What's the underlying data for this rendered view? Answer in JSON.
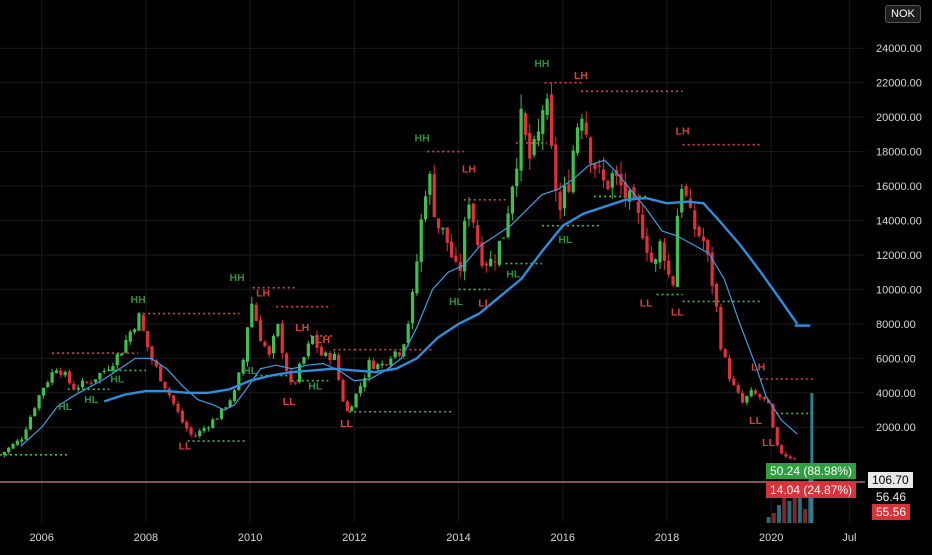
{
  "currency_label": "NOK",
  "colors": {
    "background": "#000000",
    "up_candle": "#3fbf4f",
    "down_candle": "#e0303a",
    "ma_fast": "#3aa0e8",
    "ma_slow": "#2a8fe0",
    "hh_text": "#2f8f3f",
    "lh_text": "#d94040",
    "support_line": "#3fbf4f",
    "resistance_line": "#e04040",
    "axis_text": "#d8d8d8",
    "grid": "#1a1a1a",
    "tag_green": "#2e9e3e",
    "tag_red": "#d8323a",
    "price_line": "#f0b0a0"
  },
  "chart_data": {
    "type": "candlestick",
    "instrument_currency": "NOK",
    "x_ticks": [
      "2006",
      "2008",
      "2010",
      "2012",
      "2014",
      "2016",
      "2018",
      "2020",
      "Jul"
    ],
    "x_tick_years": [
      2006,
      2008,
      2010,
      2012,
      2014,
      2016,
      2018,
      2020,
      2021.5
    ],
    "y_ticks": [
      "2000.00",
      "4000.00",
      "6000.00",
      "8000.00",
      "10000.00",
      "12000.00",
      "14000.00",
      "16000.00",
      "18000.00",
      "20000.00",
      "22000.00",
      "24000.00"
    ],
    "y_tick_values": [
      2000,
      4000,
      6000,
      8000,
      10000,
      12000,
      14000,
      16000,
      18000,
      20000,
      22000,
      24000
    ],
    "ylim": [
      -3500,
      26800
    ],
    "xlim": [
      2005.2,
      2021.8
    ],
    "close_path": [
      [
        2005.2,
        400
      ],
      [
        2005.6,
        1300
      ],
      [
        2006.0,
        4200
      ],
      [
        2006.3,
        5600
      ],
      [
        2006.6,
        4300
      ],
      [
        2006.9,
        4600
      ],
      [
        2007.2,
        5300
      ],
      [
        2007.5,
        6300
      ],
      [
        2007.85,
        8500
      ],
      [
        2008.1,
        6000
      ],
      [
        2008.4,
        4200
      ],
      [
        2008.7,
        2300
      ],
      [
        2008.9,
        1400
      ],
      [
        2009.1,
        1900
      ],
      [
        2009.4,
        2700
      ],
      [
        2009.7,
        4000
      ],
      [
        2009.9,
        6300
      ],
      [
        2010.0,
        9600
      ],
      [
        2010.2,
        7300
      ],
      [
        2010.4,
        5800
      ],
      [
        2010.5,
        8200
      ],
      [
        2010.7,
        5400
      ],
      [
        2010.8,
        4200
      ],
      [
        2011.0,
        5800
      ],
      [
        2011.2,
        7200
      ],
      [
        2011.4,
        6000
      ],
      [
        2011.6,
        6300
      ],
      [
        2011.75,
        4000
      ],
      [
        2011.85,
        2800
      ],
      [
        2012.1,
        4300
      ],
      [
        2012.3,
        5800
      ],
      [
        2012.5,
        5500
      ],
      [
        2012.7,
        6300
      ],
      [
        2012.9,
        6500
      ],
      [
        2013.1,
        9000
      ],
      [
        2013.25,
        13000
      ],
      [
        2013.4,
        17000
      ],
      [
        2013.6,
        13800
      ],
      [
        2013.8,
        12700
      ],
      [
        2014.0,
        10500
      ],
      [
        2014.2,
        15500
      ],
      [
        2014.4,
        12200
      ],
      [
        2014.6,
        11500
      ],
      [
        2014.85,
        13000
      ],
      [
        2015.0,
        15800
      ],
      [
        2015.2,
        19500
      ],
      [
        2015.4,
        17200
      ],
      [
        2015.55,
        19000
      ],
      [
        2015.65,
        21500
      ],
      [
        2015.8,
        17200
      ],
      [
        2015.95,
        14500
      ],
      [
        2016.1,
        16200
      ],
      [
        2016.35,
        21000
      ],
      [
        2016.5,
        18500
      ],
      [
        2016.75,
        16000
      ],
      [
        2016.95,
        16500
      ],
      [
        2017.15,
        15800
      ],
      [
        2017.35,
        14500
      ],
      [
        2017.55,
        13500
      ],
      [
        2017.75,
        11000
      ],
      [
        2017.9,
        13000
      ],
      [
        2018.1,
        9700
      ],
      [
        2018.25,
        16800
      ],
      [
        2018.45,
        14000
      ],
      [
        2018.7,
        12800
      ],
      [
        2018.9,
        10000
      ],
      [
        2019.05,
        6500
      ],
      [
        2019.25,
        4500
      ],
      [
        2019.45,
        3400
      ],
      [
        2019.6,
        4000
      ],
      [
        2019.75,
        3800
      ],
      [
        2019.85,
        3600
      ],
      [
        2019.95,
        3200
      ],
      [
        2020.1,
        800
      ],
      [
        2020.3,
        350
      ],
      [
        2020.5,
        250
      ]
    ],
    "ma_fast": [
      [
        2005.6,
        900
      ],
      [
        2006.0,
        2000
      ],
      [
        2006.3,
        3200
      ],
      [
        2006.6,
        3800
      ],
      [
        2006.9,
        4300
      ],
      [
        2007.2,
        4800
      ],
      [
        2007.5,
        5400
      ],
      [
        2007.8,
        6000
      ],
      [
        2008.1,
        6000
      ],
      [
        2008.4,
        5400
      ],
      [
        2008.7,
        4400
      ],
      [
        2009.0,
        3600
      ],
      [
        2009.3,
        3300
      ],
      [
        2009.5,
        3000
      ],
      [
        2009.7,
        3300
      ],
      [
        2009.9,
        4100
      ],
      [
        2010.2,
        5400
      ],
      [
        2010.5,
        5600
      ],
      [
        2010.8,
        5400
      ],
      [
        2011.1,
        5600
      ],
      [
        2011.4,
        5700
      ],
      [
        2011.7,
        5300
      ],
      [
        2012.0,
        4700
      ],
      [
        2012.3,
        4800
      ],
      [
        2012.6,
        5300
      ],
      [
        2012.9,
        6000
      ],
      [
        2013.2,
        7800
      ],
      [
        2013.5,
        10000
      ],
      [
        2013.8,
        11000
      ],
      [
        2014.1,
        11400
      ],
      [
        2014.4,
        12500
      ],
      [
        2014.7,
        13100
      ],
      [
        2015.0,
        13700
      ],
      [
        2015.3,
        14600
      ],
      [
        2015.6,
        15500
      ],
      [
        2015.9,
        15800
      ],
      [
        2016.2,
        16400
      ],
      [
        2016.5,
        17200
      ],
      [
        2016.8,
        17500
      ],
      [
        2017.0,
        16900
      ],
      [
        2017.3,
        15800
      ],
      [
        2017.6,
        14700
      ],
      [
        2017.9,
        13400
      ],
      [
        2018.2,
        13100
      ],
      [
        2018.5,
        12600
      ],
      [
        2018.8,
        12100
      ],
      [
        2019.1,
        10600
      ],
      [
        2019.4,
        8000
      ],
      [
        2019.7,
        5600
      ],
      [
        2019.9,
        3800
      ],
      [
        2020.2,
        2400
      ],
      [
        2020.5,
        1600
      ]
    ],
    "ma_slow": [
      [
        2007.2,
        3500
      ],
      [
        2007.6,
        3900
      ],
      [
        2008.0,
        4100
      ],
      [
        2008.4,
        4100
      ],
      [
        2008.8,
        4000
      ],
      [
        2009.2,
        4000
      ],
      [
        2009.6,
        4200
      ],
      [
        2010.0,
        4700
      ],
      [
        2010.4,
        5000
      ],
      [
        2010.8,
        5200
      ],
      [
        2011.2,
        5300
      ],
      [
        2011.6,
        5400
      ],
      [
        2012.0,
        5300
      ],
      [
        2012.4,
        5200
      ],
      [
        2012.8,
        5400
      ],
      [
        2013.2,
        6000
      ],
      [
        2013.6,
        7200
      ],
      [
        2014.0,
        8000
      ],
      [
        2014.4,
        8600
      ],
      [
        2014.8,
        9600
      ],
      [
        2015.2,
        10600
      ],
      [
        2015.6,
        12200
      ],
      [
        2016.0,
        13700
      ],
      [
        2016.4,
        14400
      ],
      [
        2016.8,
        14800
      ],
      [
        2017.2,
        15200
      ],
      [
        2017.6,
        15300
      ],
      [
        2018.0,
        15000
      ],
      [
        2018.4,
        15100
      ],
      [
        2018.7,
        15000
      ],
      [
        2019.0,
        14000
      ],
      [
        2019.4,
        12600
      ],
      [
        2019.8,
        11000
      ],
      [
        2020.2,
        9300
      ],
      [
        2020.5,
        8000
      ]
    ],
    "ma_slow_tail": [
      [
        2020.45,
        7900
      ],
      [
        2020.75,
        7900
      ]
    ],
    "structure_labels": [
      {
        "text": "HH",
        "kind": "high",
        "x": 2007.85,
        "y": 9200
      },
      {
        "text": "HL",
        "kind": "high",
        "x": 2006.45,
        "y": 3000
      },
      {
        "text": "HL",
        "kind": "high",
        "x": 2006.95,
        "y": 3400
      },
      {
        "text": "HL",
        "kind": "high",
        "x": 2007.45,
        "y": 4600
      },
      {
        "text": "LL",
        "kind": "low",
        "x": 2008.75,
        "y": 700
      },
      {
        "text": "HH",
        "kind": "high",
        "x": 2009.75,
        "y": 10500
      },
      {
        "text": "HL",
        "kind": "high",
        "x": 2010.0,
        "y": 5100
      },
      {
        "text": "LH",
        "kind": "low",
        "x": 2010.25,
        "y": 9600
      },
      {
        "text": "LL",
        "kind": "low",
        "x": 2010.75,
        "y": 3300
      },
      {
        "text": "LH",
        "kind": "low",
        "x": 2011.0,
        "y": 7600
      },
      {
        "text": "LH",
        "kind": "low",
        "x": 2011.4,
        "y": 6900
      },
      {
        "text": "HL",
        "kind": "high",
        "x": 2011.25,
        "y": 4200
      },
      {
        "text": "LL",
        "kind": "low",
        "x": 2011.85,
        "y": 2000
      },
      {
        "text": "HH",
        "kind": "high",
        "x": 2013.3,
        "y": 18600
      },
      {
        "text": "LH",
        "kind": "low",
        "x": 2014.2,
        "y": 16800
      },
      {
        "text": "HL",
        "kind": "high",
        "x": 2013.95,
        "y": 9100
      },
      {
        "text": "LL",
        "kind": "low",
        "x": 2014.5,
        "y": 9000
      },
      {
        "text": "HL",
        "kind": "high",
        "x": 2015.05,
        "y": 10700
      },
      {
        "text": "HH",
        "kind": "high",
        "x": 2015.6,
        "y": 22900
      },
      {
        "text": "LH",
        "kind": "low",
        "x": 2016.35,
        "y": 22200
      },
      {
        "text": "HL",
        "kind": "high",
        "x": 2016.05,
        "y": 12700
      },
      {
        "text": "LL",
        "kind": "low",
        "x": 2017.6,
        "y": 9000
      },
      {
        "text": "LL",
        "kind": "low",
        "x": 2018.2,
        "y": 8500
      },
      {
        "text": "LH",
        "kind": "low",
        "x": 2018.3,
        "y": 19000
      },
      {
        "text": "LH",
        "kind": "low",
        "x": 2019.75,
        "y": 5300
      },
      {
        "text": "LL",
        "kind": "low",
        "x": 2019.7,
        "y": 2200
      },
      {
        "text": "LL",
        "kind": "low",
        "x": 2019.95,
        "y": 900
      }
    ],
    "resistance_lines": [
      [
        2006.2,
        2007.85,
        6300
      ],
      [
        2007.85,
        2009.8,
        8600
      ],
      [
        2010.05,
        2010.9,
        10100
      ],
      [
        2010.5,
        2011.5,
        9000
      ],
      [
        2011.15,
        2011.6,
        7300
      ],
      [
        2011.6,
        2012.0,
        6500
      ],
      [
        2012.0,
        2013.5,
        6500
      ],
      [
        2013.4,
        2014.1,
        18000
      ],
      [
        2014.1,
        2014.9,
        15200
      ],
      [
        2015.1,
        2015.7,
        18500
      ],
      [
        2015.65,
        2016.4,
        22000
      ],
      [
        2016.35,
        2018.3,
        21500
      ],
      [
        2018.3,
        2019.8,
        18400
      ],
      [
        2019.8,
        2020.8,
        4800
      ]
    ],
    "support_lines": [
      [
        2005.2,
        2006.5,
        400
      ],
      [
        2006.5,
        2007.3,
        4200
      ],
      [
        2007.3,
        2008.0,
        5300
      ],
      [
        2008.8,
        2009.9,
        1200
      ],
      [
        2010.1,
        2010.8,
        5000
      ],
      [
        2010.8,
        2011.5,
        4700
      ],
      [
        2011.9,
        2013.9,
        2900
      ],
      [
        2014.0,
        2014.6,
        10000
      ],
      [
        2014.9,
        2015.6,
        11500
      ],
      [
        2015.6,
        2016.7,
        13700
      ],
      [
        2016.6,
        2017.6,
        15400
      ],
      [
        2017.8,
        2018.3,
        9700
      ],
      [
        2018.3,
        2019.8,
        9300
      ],
      [
        2020.0,
        2020.8,
        2800
      ]
    ],
    "price_tags": [
      {
        "text": "50.24 (88.98%)",
        "color": "green",
        "value_label": "106.70"
      },
      {
        "text": "14.04 (24.87%)",
        "color": "red",
        "value_label": "56.46"
      },
      {
        "text": "55.56",
        "color": "red"
      }
    ]
  }
}
